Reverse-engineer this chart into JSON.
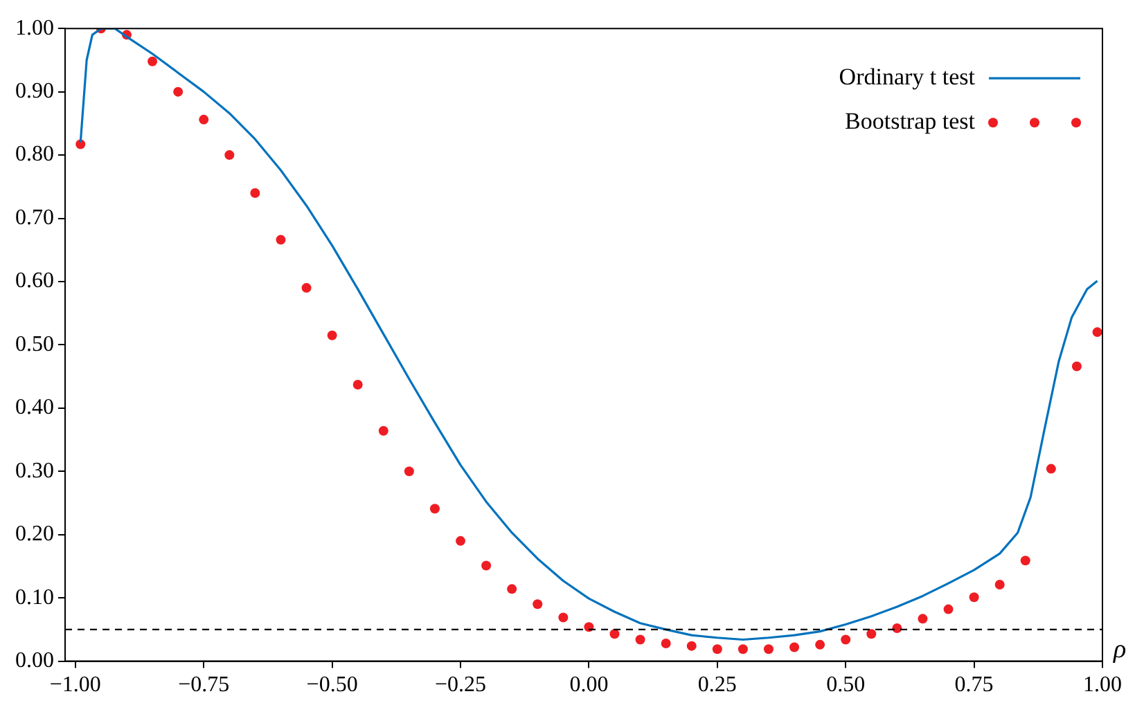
{
  "chart_data": {
    "type": "line",
    "xlabel": "ρ",
    "xlim": [
      -1.02,
      1.0
    ],
    "ylim": [
      0,
      1.0
    ],
    "xticks": [
      {
        "value": -1,
        "label": "−1.00"
      },
      {
        "value": -0.75,
        "label": "−0.75"
      },
      {
        "value": -0.5,
        "label": "−0.50"
      },
      {
        "value": -0.25,
        "label": "−0.25"
      },
      {
        "value": 0,
        "label": "0.00"
      },
      {
        "value": 0.25,
        "label": "0.25"
      },
      {
        "value": 0.5,
        "label": "0.50"
      },
      {
        "value": 0.75,
        "label": "0.75"
      },
      {
        "value": 1,
        "label": "1.00"
      }
    ],
    "yticks": [
      {
        "value": 0,
        "label": "0.00"
      },
      {
        "value": 0.1,
        "label": "0.10"
      },
      {
        "value": 0.2,
        "label": "0.20"
      },
      {
        "value": 0.3,
        "label": "0.30"
      },
      {
        "value": 0.4,
        "label": "0.40"
      },
      {
        "value": 0.5,
        "label": "0.50"
      },
      {
        "value": 0.6,
        "label": "0.60"
      },
      {
        "value": 0.7,
        "label": "0.70"
      },
      {
        "value": 0.8,
        "label": "0.80"
      },
      {
        "value": 0.9,
        "label": "0.90"
      },
      {
        "value": 1.0,
        "label": "1.00"
      }
    ],
    "grid": false,
    "legend": "top right",
    "marker": "none",
    "line_style": "solid",
    "ref_lines": [
      {
        "axis": "y",
        "value": 0.05,
        "color": "#000000",
        "line_style": "dashed"
      }
    ],
    "series": [
      {
        "name": "Ordinary t test",
        "color": "#0072bd",
        "x": [
          -0.99,
          -0.978,
          -0.967,
          -0.95,
          -0.923,
          -0.9,
          -0.85,
          -0.8,
          -0.75,
          -0.7,
          -0.65,
          -0.6,
          -0.55,
          -0.5,
          -0.45,
          -0.4,
          -0.35,
          -0.3,
          -0.25,
          -0.2,
          -0.15,
          -0.1,
          -0.05,
          0,
          0.05,
          0.1,
          0.15,
          0.2,
          0.25,
          0.3,
          0.35,
          0.4,
          0.45,
          0.5,
          0.55,
          0.6,
          0.65,
          0.7,
          0.75,
          0.8,
          0.835,
          0.86,
          0.887,
          0.915,
          0.94,
          0.97,
          0.99
        ],
        "values": [
          0.82,
          0.95,
          0.99,
          1.0,
          1.0,
          0.987,
          0.96,
          0.93,
          0.9,
          0.866,
          0.825,
          0.776,
          0.72,
          0.657,
          0.588,
          0.517,
          0.446,
          0.377,
          0.31,
          0.252,
          0.203,
          0.162,
          0.127,
          0.099,
          0.078,
          0.06,
          0.05,
          0.041,
          0.037,
          0.034,
          0.037,
          0.041,
          0.047,
          0.058,
          0.071,
          0.086,
          0.103,
          0.123,
          0.144,
          0.17,
          0.203,
          0.259,
          0.366,
          0.474,
          0.543,
          0.588,
          0.601
        ]
      },
      {
        "name": "Bootstrap test",
        "type": "scatter",
        "marker": "circle",
        "color": "#ee1d23",
        "x": [
          -0.99,
          -0.95,
          -0.9,
          -0.85,
          -0.8,
          -0.75,
          -0.7,
          -0.65,
          -0.6,
          -0.55,
          -0.5,
          -0.45,
          -0.4,
          -0.35,
          -0.3,
          -0.25,
          -0.2,
          -0.15,
          -0.1,
          -0.05,
          0,
          0.05,
          0.1,
          0.15,
          0.2,
          0.25,
          0.3,
          0.35,
          0.4,
          0.45,
          0.5,
          0.55,
          0.6,
          0.65,
          0.7,
          0.75,
          0.8,
          0.85,
          0.9,
          0.95,
          0.99
        ],
        "values": [
          0.817,
          1.0,
          0.99,
          0.948,
          0.9,
          0.856,
          0.8,
          0.74,
          0.666,
          0.59,
          0.515,
          0.437,
          0.364,
          0.3,
          0.241,
          0.19,
          0.151,
          0.114,
          0.09,
          0.069,
          0.054,
          0.043,
          0.034,
          0.028,
          0.024,
          0.019,
          0.019,
          0.019,
          0.022,
          0.026,
          0.034,
          0.043,
          0.052,
          0.067,
          0.082,
          0.101,
          0.121,
          0.159,
          0.304,
          0.466,
          0.52
        ]
      }
    ]
  }
}
